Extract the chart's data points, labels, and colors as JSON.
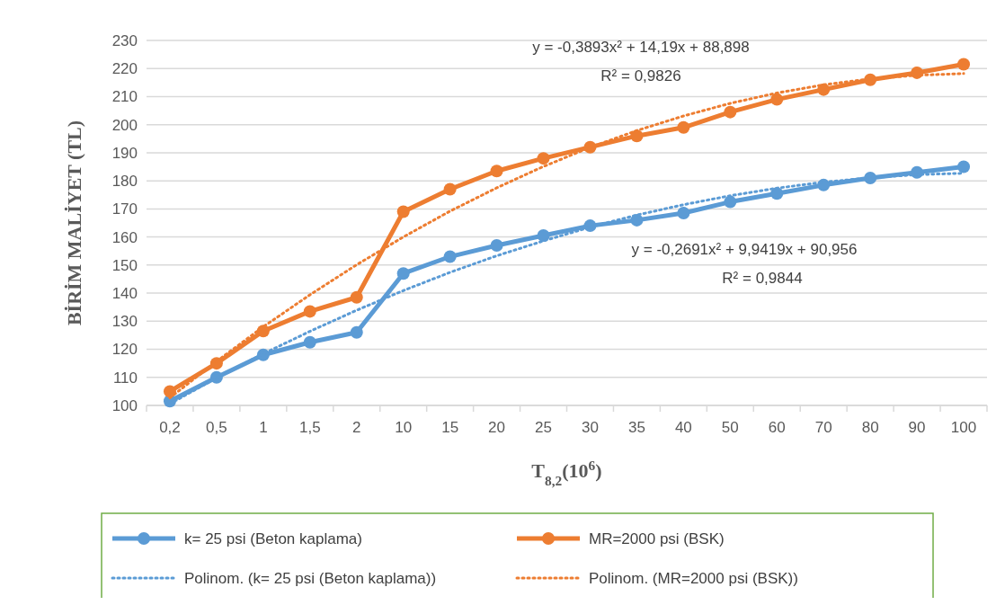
{
  "chart_data": {
    "type": "line",
    "xlabel": "T$_{8,2}$(10$^{6}$)",
    "ylabel": "BİRİM MALİYET (TL)",
    "categories": [
      "0,2",
      "0,5",
      "1",
      "1,5",
      "2",
      "10",
      "15",
      "20",
      "25",
      "30",
      "35",
      "40",
      "50",
      "60",
      "70",
      "80",
      "90",
      "100"
    ],
    "ylim": [
      100,
      230
    ],
    "yticks": [
      100,
      110,
      120,
      130,
      140,
      150,
      160,
      170,
      180,
      190,
      200,
      210,
      220,
      230
    ],
    "grid": "y",
    "legend": "bottom",
    "series": [
      {
        "name": "k= 25 psi (Beton kaplama)",
        "color": "#5b9bd5",
        "marker": "circle",
        "line_style": "solid",
        "values": [
          101.5,
          110,
          118,
          122.5,
          126,
          147,
          153,
          157,
          160.5,
          164,
          166,
          168.5,
          172.5,
          175.5,
          178.5,
          181,
          183,
          185
        ]
      },
      {
        "name": "MR=2000 psi (BSK)",
        "color": "#ed7d31",
        "marker": "circle",
        "line_style": "solid",
        "values": [
          105,
          115,
          126.5,
          133.5,
          138.5,
          169,
          177,
          183.5,
          188,
          192,
          196,
          199,
          204.5,
          209,
          212.5,
          216,
          218.5,
          221.5
        ]
      },
      {
        "name": "Polinom. (k= 25 psi (Beton kaplama))",
        "color": "#5b9bd5",
        "marker": "none",
        "line_style": "dotted",
        "values": [
          100.6,
          109.8,
          118.4,
          126.4,
          133.9,
          140.9,
          147.4,
          153.3,
          158.6,
          163.5,
          167.8,
          171.5,
          174.7,
          177.4,
          179.5,
          181.1,
          182.2,
          182.7
        ]
      },
      {
        "name": "Polinom. (MR=2000 psi (BSK))",
        "color": "#ed7d31",
        "marker": "none",
        "line_style": "dotted",
        "values": [
          102.7,
          115.7,
          128.0,
          139.4,
          150.1,
          160.0,
          169.2,
          177.5,
          185.1,
          191.9,
          197.9,
          203.1,
          207.6,
          211.3,
          214.2,
          216.3,
          217.6,
          218.2
        ]
      }
    ],
    "annotations": [
      "y = -0,3893x² + 14,19x + 88,898",
      "R² = 0,9826",
      "y = -0,2691x² + 9,9419x + 90,956",
      "R² = 0,9844"
    ]
  }
}
